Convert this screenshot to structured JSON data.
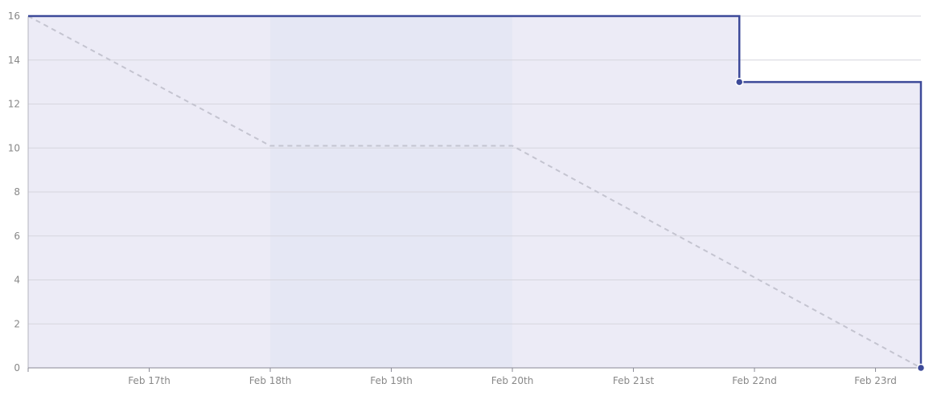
{
  "chart_data": {
    "type": "line",
    "title": "",
    "xlabel": "",
    "ylabel": "",
    "x_range": [
      "2021-02-16",
      "2021-02-23T09:00"
    ],
    "ylim": [
      0,
      16
    ],
    "y_ticks": [
      0,
      2,
      4,
      6,
      8,
      10,
      12,
      14,
      16
    ],
    "x_ticks": [
      {
        "x": "2021-02-16",
        "label": ""
      },
      {
        "x": "2021-02-17",
        "label": "Feb 17th"
      },
      {
        "x": "2021-02-18",
        "label": "Feb 18th"
      },
      {
        "x": "2021-02-19",
        "label": "Feb 19th"
      },
      {
        "x": "2021-02-20",
        "label": "Feb 20th"
      },
      {
        "x": "2021-02-21",
        "label": "Feb 21st"
      },
      {
        "x": "2021-02-22",
        "label": "Feb 22nd"
      },
      {
        "x": "2021-02-23",
        "label": "Feb 23rd"
      }
    ],
    "grid": true,
    "legend": "none",
    "highlight_band": {
      "x": [
        "2021-02-18",
        "2021-02-20"
      ],
      "color": "#e3e5f3"
    },
    "series": [
      {
        "style": "step",
        "color": "#3d4a99",
        "fill": "#ecebf6",
        "points": [
          {
            "x": "2021-02-16",
            "y": 16
          },
          {
            "x": "2021-02-21T21:00",
            "y": 13,
            "marker": true
          },
          {
            "x": "2021-02-23T09:00",
            "y": 0,
            "marker": true
          }
        ]
      },
      {
        "style": "dashed",
        "color": "#c4c4d0",
        "points": [
          {
            "x": "2021-02-16",
            "y": 16
          },
          {
            "x": "2021-02-18",
            "y": 10.1
          },
          {
            "x": "2021-02-20",
            "y": 10.1
          },
          {
            "x": "2021-02-23T09:00",
            "y": 0
          }
        ]
      }
    ]
  }
}
